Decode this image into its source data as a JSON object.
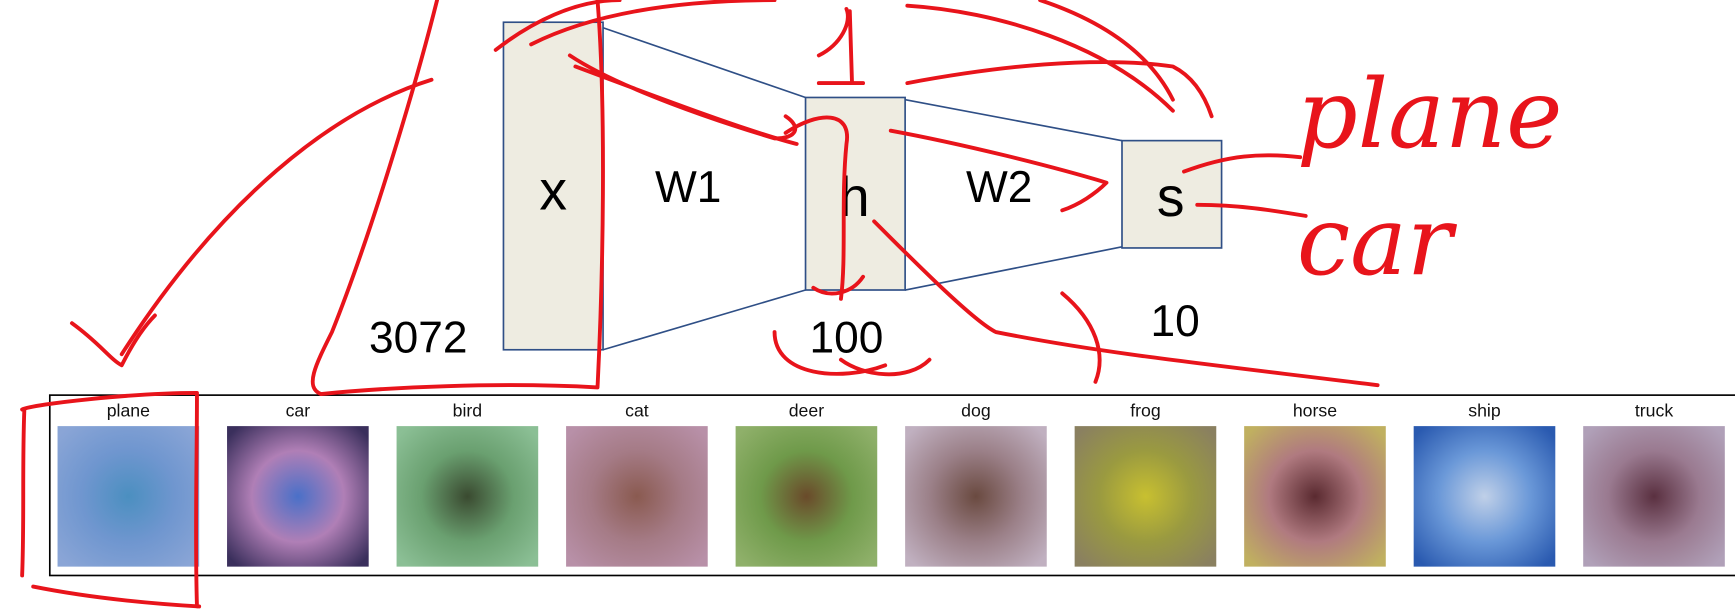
{
  "diagram": {
    "nodes": [
      {
        "label": "x",
        "size": 3072
      },
      {
        "label": "h",
        "size": 100
      },
      {
        "label": "s",
        "size": 10
      }
    ],
    "edges": [
      {
        "label": "W1"
      },
      {
        "label": "W2"
      }
    ],
    "classes": [
      "plane",
      "car",
      "bird",
      "cat",
      "deer",
      "dog",
      "frog",
      "horse",
      "ship",
      "truck"
    ]
  },
  "annotations": [
    "plane",
    "car"
  ]
}
